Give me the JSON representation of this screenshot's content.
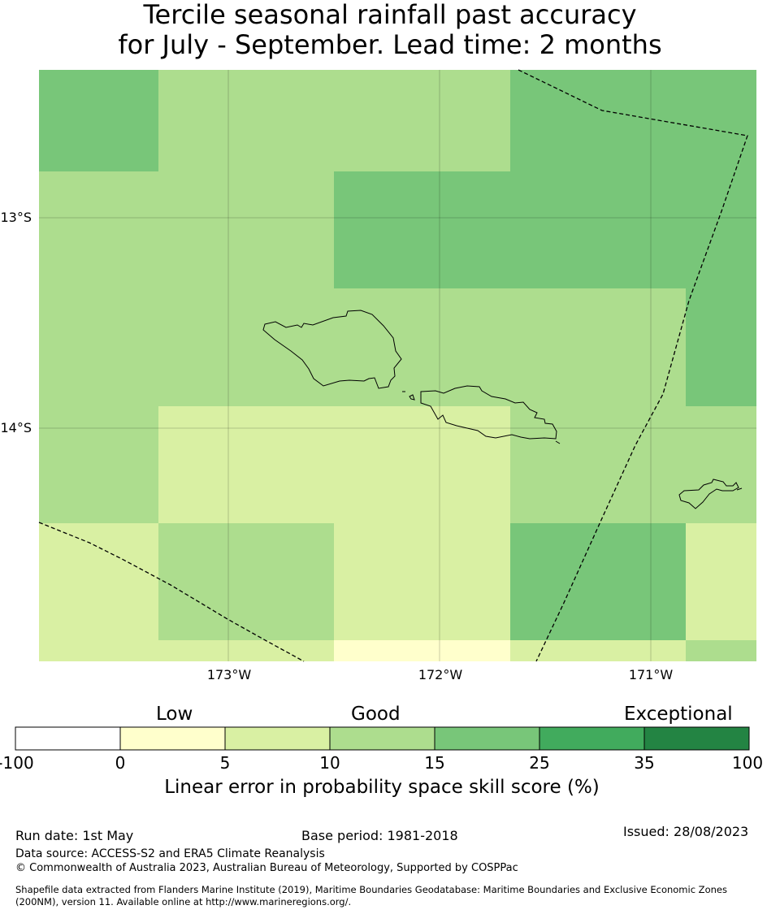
{
  "title": {
    "line1": "Tercile seasonal rainfall past accuracy",
    "line2": "for July - September. Lead time: 2 months"
  },
  "axes": {
    "lat_labels": [
      "13°S",
      "14°S"
    ],
    "lon_labels": [
      "173°W",
      "172°W",
      "171°W"
    ]
  },
  "colors": {
    "bin_0_5": "#ffffcc",
    "bin_5_10": "#d9f0a3",
    "bin_10_15": "#addd8e",
    "bin_15_25": "#78c679",
    "bin_25_35": "#41ab5d",
    "bin_35_100": "#238443"
  },
  "legend": {
    "categories": [
      "Low",
      "Good",
      "Exceptional"
    ],
    "ticks": [
      "-100",
      "0",
      "5",
      "10",
      "15",
      "25",
      "35",
      "100"
    ],
    "colors": [
      "#ffffff",
      "#ffffcc",
      "#d9f0a3",
      "#addd8e",
      "#78c679",
      "#41ab5d",
      "#238443"
    ],
    "title": "Linear error in probability space skill score (%)"
  },
  "footer": {
    "run_date": "Run date: 1st May",
    "base_period": "Base period: 1981-2018",
    "issued": "Issued: 28/08/2023",
    "data_source": "Data source: ACCESS-S2 and ERA5 Climate Reanalysis",
    "copyright": "© Commonwealth of Australia 2023, Australian Bureau of Meteorology, Supported by COSPPac",
    "shapefile_line1": "Shapefile data extracted from Flanders Marine Institute (2019), Maritime Boundaries Geodatabase: Maritime Boundaries and Exclusive Economic Zones",
    "shapefile_line2": "(200NM), version 11. Available online at http://www.marineregions.org/."
  }
}
